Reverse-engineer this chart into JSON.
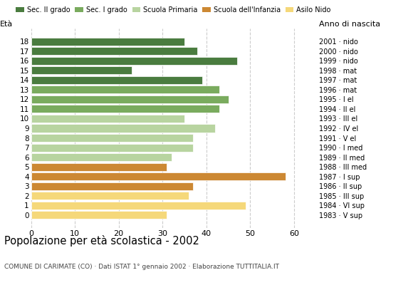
{
  "ages": [
    18,
    17,
    16,
    15,
    14,
    13,
    12,
    11,
    10,
    9,
    8,
    7,
    6,
    5,
    4,
    3,
    2,
    1,
    0
  ],
  "values": [
    35,
    38,
    47,
    23,
    39,
    43,
    45,
    43,
    35,
    42,
    37,
    37,
    32,
    31,
    58,
    37,
    36,
    49,
    31
  ],
  "anno_nascita": [
    "1983 · V sup",
    "1984 · VI sup",
    "1985 · III sup",
    "1986 · II sup",
    "1987 · I sup",
    "1988 · III med",
    "1989 · II med",
    "1990 · I med",
    "1991 · V el",
    "1992 · IV el",
    "1993 · III el",
    "1994 · II el",
    "1995 · I el",
    "1996 · mat",
    "1997 · mat",
    "1998 · mat",
    "1999 · nido",
    "2000 · nido",
    "2001 · nido"
  ],
  "colors": [
    "#4a7c3f",
    "#4a7c3f",
    "#4a7c3f",
    "#4a7c3f",
    "#4a7c3f",
    "#7aab5e",
    "#7aab5e",
    "#7aab5e",
    "#b8d4a0",
    "#b8d4a0",
    "#b8d4a0",
    "#b8d4a0",
    "#b8d4a0",
    "#cc8833",
    "#cc8833",
    "#cc8833",
    "#f5d87a",
    "#f5d87a",
    "#f5d87a"
  ],
  "legend_labels": [
    "Sec. II grado",
    "Sec. I grado",
    "Scuola Primaria",
    "Scuola dell'Infanzia",
    "Asilo Nido"
  ],
  "legend_colors": [
    "#4a7c3f",
    "#7aab5e",
    "#b8d4a0",
    "#cc8833",
    "#f5d87a"
  ],
  "title": "Popolazione per età scolastica - 2002",
  "subtitle": "COMUNE DI CARIMATE (CO) · Dati ISTAT 1° gennaio 2002 · Elaborazione TUTTITALIA.IT",
  "xlabel_left": "Età",
  "xlabel_right": "Anno di nascita",
  "xlim": [
    0,
    65
  ],
  "xticks": [
    0,
    10,
    20,
    30,
    40,
    50,
    60
  ],
  "background_color": "#ffffff",
  "grid_color": "#cccccc"
}
